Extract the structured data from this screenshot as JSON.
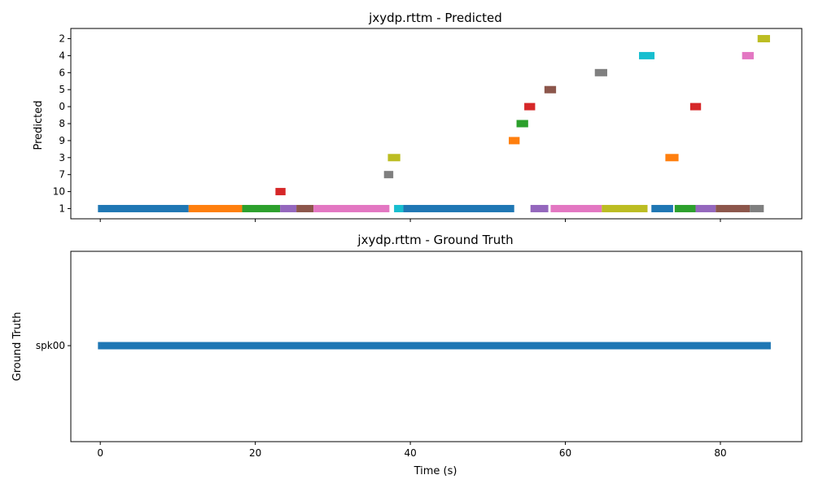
{
  "chart_data": [
    {
      "type": "timeline",
      "title": "jxydp.rttm - Predicted",
      "ylabel": "Predicted",
      "xlabel": "",
      "xlim": [
        -3.8,
        90.5
      ],
      "xticks": [
        0,
        20,
        40,
        60,
        80
      ],
      "show_xtick_labels": false,
      "speakers": [
        "1",
        "10",
        "7",
        "3",
        "9",
        "8",
        "0",
        "5",
        "6",
        "4",
        "2"
      ],
      "segments": [
        {
          "speaker": "1",
          "start": -0.3,
          "end": 11.4,
          "color": "#1f77b4"
        },
        {
          "speaker": "1",
          "start": 11.4,
          "end": 18.3,
          "color": "#ff7f0e"
        },
        {
          "speaker": "1",
          "start": 18.3,
          "end": 23.2,
          "color": "#2ca02c"
        },
        {
          "speaker": "1",
          "start": 23.2,
          "end": 25.3,
          "color": "#9467bd"
        },
        {
          "speaker": "1",
          "start": 25.3,
          "end": 27.5,
          "color": "#8c564b"
        },
        {
          "speaker": "1",
          "start": 27.5,
          "end": 37.3,
          "color": "#e377c2"
        },
        {
          "speaker": "1",
          "start": 37.9,
          "end": 39.1,
          "color": "#17becf"
        },
        {
          "speaker": "1",
          "start": 39.1,
          "end": 53.4,
          "color": "#1f77b4"
        },
        {
          "speaker": "1",
          "start": 55.5,
          "end": 57.8,
          "color": "#9467bd"
        },
        {
          "speaker": "1",
          "start": 58.1,
          "end": 64.7,
          "color": "#e377c2"
        },
        {
          "speaker": "1",
          "start": 64.7,
          "end": 70.6,
          "color": "#bcbd22"
        },
        {
          "speaker": "1",
          "start": 71.1,
          "end": 73.9,
          "color": "#1f77b4"
        },
        {
          "speaker": "1",
          "start": 74.1,
          "end": 76.8,
          "color": "#2ca02c"
        },
        {
          "speaker": "1",
          "start": 76.8,
          "end": 79.4,
          "color": "#9467bd"
        },
        {
          "speaker": "1",
          "start": 79.4,
          "end": 83.8,
          "color": "#8c564b"
        },
        {
          "speaker": "1",
          "start": 83.8,
          "end": 85.6,
          "color": "#7f7f7f"
        },
        {
          "speaker": "10",
          "start": 22.6,
          "end": 23.9,
          "color": "#d62728"
        },
        {
          "speaker": "7",
          "start": 36.6,
          "end": 37.8,
          "color": "#7f7f7f"
        },
        {
          "speaker": "3",
          "start": 37.1,
          "end": 38.7,
          "color": "#bcbd22"
        },
        {
          "speaker": "9",
          "start": 52.7,
          "end": 54.1,
          "color": "#ff7f0e"
        },
        {
          "speaker": "8",
          "start": 53.7,
          "end": 55.2,
          "color": "#2ca02c"
        },
        {
          "speaker": "0",
          "start": 54.7,
          "end": 56.1,
          "color": "#d62728"
        },
        {
          "speaker": "5",
          "start": 57.3,
          "end": 58.8,
          "color": "#8c564b"
        },
        {
          "speaker": "6",
          "start": 63.8,
          "end": 65.4,
          "color": "#7f7f7f"
        },
        {
          "speaker": "4",
          "start": 69.5,
          "end": 71.5,
          "color": "#17becf"
        },
        {
          "speaker": "3",
          "start": 72.9,
          "end": 74.6,
          "color": "#ff7f0e"
        },
        {
          "speaker": "0",
          "start": 76.1,
          "end": 77.5,
          "color": "#d62728"
        },
        {
          "speaker": "4",
          "start": 82.8,
          "end": 84.3,
          "color": "#e377c2"
        },
        {
          "speaker": "2",
          "start": 84.8,
          "end": 86.4,
          "color": "#bcbd22"
        }
      ]
    },
    {
      "type": "timeline",
      "title": "jxydp.rttm - Ground Truth",
      "ylabel": "Ground Truth",
      "xlabel": "Time (s)",
      "xlim": [
        -3.8,
        90.5
      ],
      "xticks": [
        0,
        20,
        40,
        60,
        80
      ],
      "show_xtick_labels": true,
      "speakers": [
        "spk00"
      ],
      "segments": [
        {
          "speaker": "spk00",
          "start": -0.3,
          "end": 86.5,
          "color": "#1f77b4"
        }
      ]
    }
  ]
}
